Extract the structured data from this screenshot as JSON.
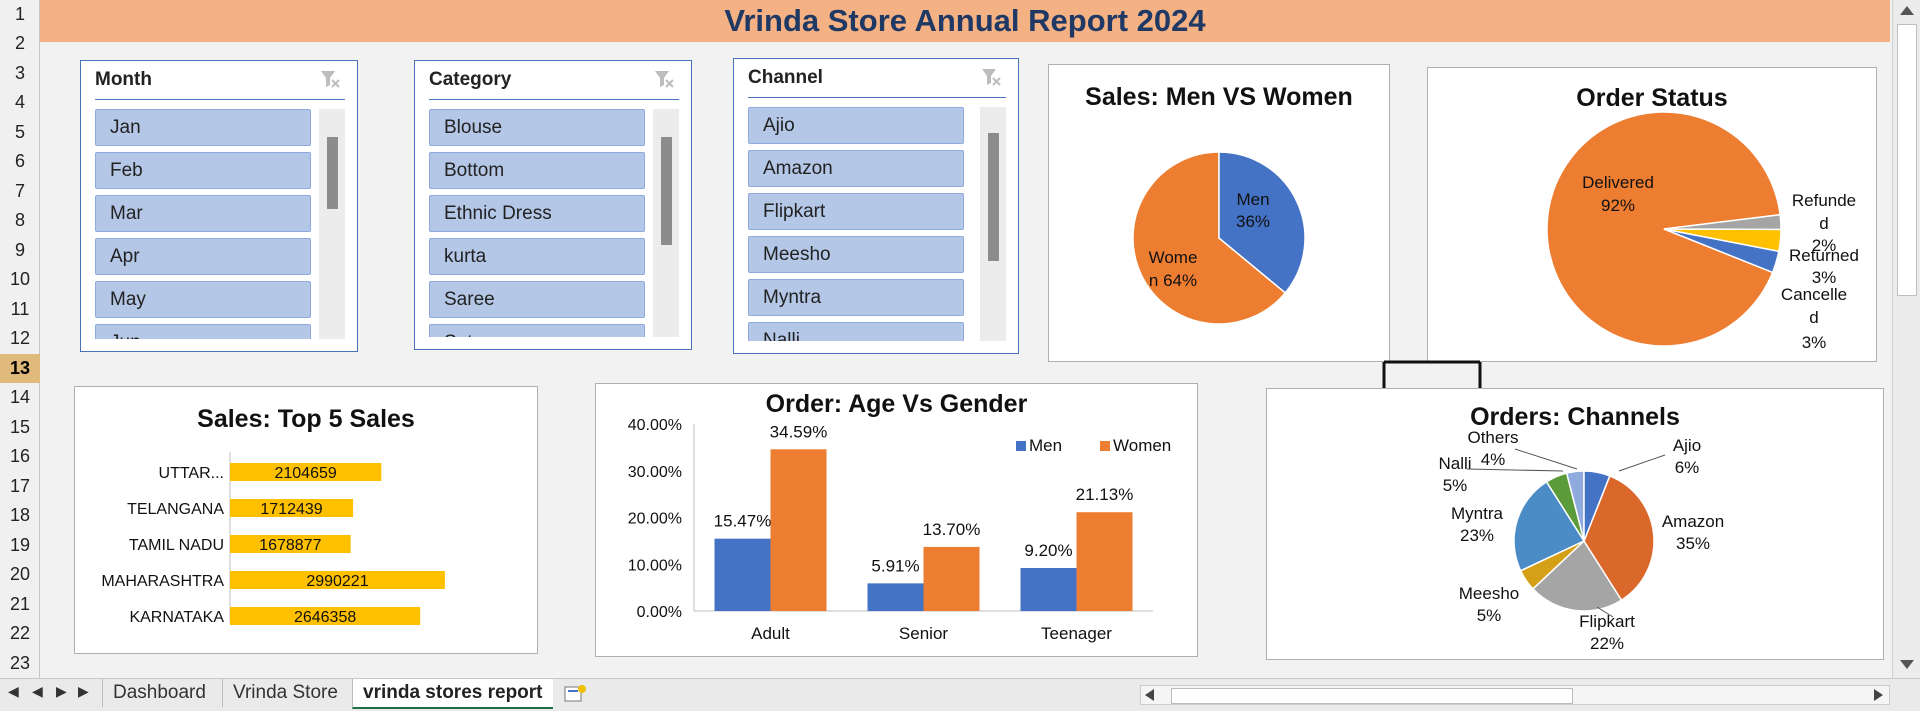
{
  "report": {
    "title": "Vrinda Store Annual Report 2024"
  },
  "rows": [
    "1",
    "2",
    "3",
    "4",
    "5",
    "6",
    "7",
    "8",
    "9",
    "10",
    "11",
    "12",
    "13",
    "14",
    "15",
    "16",
    "17",
    "18",
    "19",
    "20",
    "21",
    "22",
    "23"
  ],
  "slicers": {
    "month": {
      "header": "Month",
      "items": [
        "Jan",
        "Feb",
        "Mar",
        "Apr",
        "May",
        "Jun"
      ]
    },
    "category": {
      "header": "Category",
      "items": [
        "Blouse",
        "Bottom",
        "Ethnic Dress",
        "kurta",
        "Saree",
        "Set"
      ]
    },
    "channel": {
      "header": "Channel",
      "items": [
        "Ajio",
        "Amazon",
        "Flipkart",
        "Meesho",
        "Myntra",
        "Nalli"
      ]
    }
  },
  "charts": {
    "men_women": {
      "title": "Sales: Men VS Women",
      "men_label": "Men",
      "men_pct": "36%",
      "women_label": "Wome n 64%",
      "women_label_l1": "Wome",
      "women_label_l2": "n 64%"
    },
    "order_status": {
      "title": "Order Status",
      "delivered": "Delivered",
      "delivered_pct": "92%",
      "refunded_l1": "Refunde",
      "refunded_l2": "d",
      "refunded_pct": "2%",
      "returned": "Returned",
      "returned_pct": "3%",
      "cancelled_l1": "Cancelle",
      "cancelled_l2": "d",
      "cancelled_pct": "3%"
    },
    "top5": {
      "title": "Sales: Top 5 Sales"
    },
    "age_gender": {
      "title": "Order: Age Vs Gender"
    },
    "channels": {
      "title": "Orders: Channels"
    }
  },
  "chart_data": [
    {
      "type": "pie",
      "title": "Sales: Men VS Women",
      "labels": [
        "Men",
        "Women"
      ],
      "values": [
        36,
        64
      ],
      "colors": [
        "#4472c4",
        "#ed7d31"
      ]
    },
    {
      "type": "pie",
      "title": "Order Status",
      "labels": [
        "Delivered",
        "Refunded",
        "Returned",
        "Cancelled"
      ],
      "values": [
        92,
        2,
        3,
        3
      ],
      "colors": [
        "#ed7d31",
        "#a5a5a5",
        "#ffc000",
        "#4472c4"
      ]
    },
    {
      "type": "bar",
      "title": "Sales: Top 5 Sales",
      "categories": [
        "UTTAR...",
        "TELANGANA",
        "TAMIL NADU",
        "MAHARASHTRA",
        "KARNATAKA"
      ],
      "values": [
        2104659,
        1712439,
        1678877,
        2990221,
        2646358
      ],
      "color": "#ffc000"
    },
    {
      "type": "bar",
      "title": "Order: Age Vs Gender",
      "categories": [
        "Adult",
        "Senior",
        "Teenager"
      ],
      "series": [
        {
          "name": "Men",
          "values": [
            15.47,
            5.91,
            9.2
          ],
          "labels": [
            "15.47%",
            "5.91%",
            "9.20%"
          ],
          "color": "#4472c4"
        },
        {
          "name": "Women",
          "values": [
            34.59,
            13.7,
            21.13
          ],
          "labels": [
            "34.59%",
            "13.70%",
            "21.13%"
          ],
          "color": "#ed7d31"
        }
      ],
      "yticks": [
        "0.00%",
        "10.00%",
        "20.00%",
        "30.00%",
        "40.00%"
      ],
      "ylim": [
        0,
        40
      ],
      "legend": "top-right"
    },
    {
      "type": "pie",
      "title": "Orders: Channels",
      "labels": [
        "Ajio",
        "Amazon",
        "Flipkart",
        "Meesho",
        "Myntra",
        "Nalli",
        "Others"
      ],
      "values": [
        6,
        35,
        22,
        5,
        23,
        5,
        4
      ],
      "pct_labels": [
        "6%",
        "35%",
        "22%",
        "5%",
        "23%",
        "5%",
        "4%"
      ],
      "colors": [
        "#4472c4",
        "#d9682a",
        "#a5a5a5",
        "#d4a017",
        "#4b8bc6",
        "#5b9b3a",
        "#8faadc"
      ]
    }
  ],
  "tabs": [
    "Dashboard",
    "Vrinda Store",
    "vrinda stores report"
  ]
}
